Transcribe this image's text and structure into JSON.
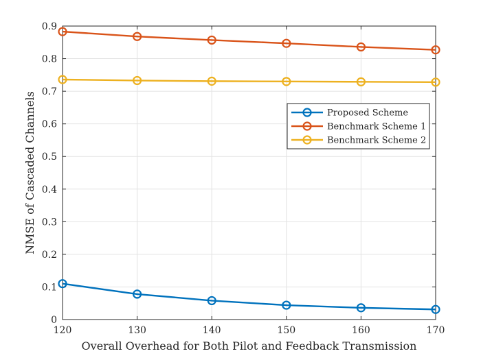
{
  "chart_data": {
    "type": "line",
    "title": "",
    "xlabel": "Overall Overhead for Both Pilot and Feedback Transmission",
    "ylabel": "NMSE of Cascaded Channels",
    "xlim": [
      120,
      170
    ],
    "ylim": [
      0,
      0.9
    ],
    "xticks": [
      120,
      130,
      140,
      150,
      160,
      170
    ],
    "yticks": [
      0,
      0.1,
      0.2,
      0.3,
      0.4,
      0.5,
      0.6,
      0.7,
      0.8,
      0.9
    ],
    "xtick_labels": [
      "120",
      "130",
      "140",
      "150",
      "160",
      "170"
    ],
    "ytick_labels": [
      "0",
      "0.1",
      "0.2",
      "0.3",
      "0.4",
      "0.5",
      "0.6",
      "0.7",
      "0.8",
      "0.9"
    ],
    "grid": true,
    "legend_position": "upper-right",
    "x": [
      120,
      130,
      140,
      150,
      160,
      170
    ],
    "series": [
      {
        "name": "Proposed Scheme",
        "color": "#0072BD",
        "marker": "circle",
        "values": [
          0.11,
          0.078,
          0.058,
          0.044,
          0.036,
          0.031
        ]
      },
      {
        "name": "Benchmark Scheme 1",
        "color": "#D95319",
        "marker": "circle",
        "values": [
          0.883,
          0.868,
          0.857,
          0.847,
          0.836,
          0.827
        ]
      },
      {
        "name": "Benchmark Scheme 2",
        "color": "#EDB120",
        "marker": "circle",
        "values": [
          0.736,
          0.733,
          0.731,
          0.73,
          0.729,
          0.728
        ]
      }
    ]
  }
}
